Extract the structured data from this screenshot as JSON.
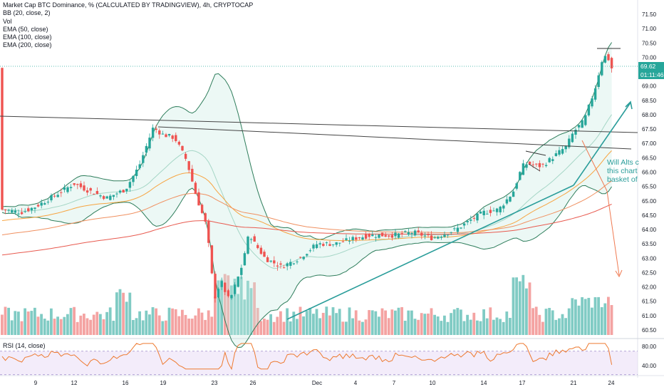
{
  "legend": {
    "title": "Market Cap BTC Dominance, % (CALCULATED BY TRADINGVIEW), 4h, CRYPTOCAP",
    "bb": "BB (20, close, 2)",
    "vol": "Vol",
    "ema50": "EMA (50, close)",
    "ema100": "EMA (100, close)",
    "ema200": "EMA (200, close)"
  },
  "rsi_label": "RSI (14, close)",
  "note": {
    "line1": "Will Alts c",
    "line2": "this chart",
    "line3": "basket of"
  },
  "badges": {
    "price": "69.62",
    "countdown": "01:11:46"
  },
  "colors": {
    "up": "#26a69a",
    "down": "#ef5350",
    "up_vol": "#80cbc4",
    "down_vol": "#f4a3a2",
    "bb_band": "#2e7d5b",
    "ema50": "#f7a440",
    "ema100": "#f09060",
    "ema200": "#e85a4f",
    "trend": "#2a9d9a",
    "arrow_down": "#f07a52",
    "rsi_line": "#ee7a30",
    "rsi_band": "#e9dcf6"
  },
  "chart_data": {
    "type": "candlestick",
    "symbol": "Market Cap BTC Dominance, %",
    "interval": "4h",
    "y_ticks": [
      "71.50",
      "71.00",
      "70.50",
      "70.00",
      "69.50",
      "69.00",
      "68.50",
      "68.00",
      "67.50",
      "67.00",
      "66.50",
      "66.00",
      "65.50",
      "65.00",
      "64.50",
      "64.00",
      "63.50",
      "63.00",
      "62.50",
      "62.00",
      "61.50",
      "61.00",
      "60.50"
    ],
    "ylim": [
      60.3,
      71.65
    ],
    "x_ticks": [
      "9",
      "12",
      "16",
      "19",
      "23",
      "26",
      "Dec",
      "4",
      "7",
      "10",
      "14",
      "17",
      "21",
      "24"
    ],
    "rsi_ticks": [
      "80.00",
      "40.00"
    ],
    "rsi_bands": [
      30,
      70
    ],
    "key_closes": [
      {
        "label": "9",
        "value": 64.8
      },
      {
        "label": "12",
        "value": 65.6
      },
      {
        "label": "16",
        "value": 65.4
      },
      {
        "label": "19",
        "value": 67.3
      },
      {
        "label": "23",
        "value": 61.6
      },
      {
        "label": "26",
        "value": 63.6
      },
      {
        "label": "Dec",
        "value": 63.5
      },
      {
        "label": "4",
        "value": 63.7
      },
      {
        "label": "7",
        "value": 63.8
      },
      {
        "label": "10",
        "value": 63.7
      },
      {
        "label": "14",
        "value": 64.6
      },
      {
        "label": "17",
        "value": 66.2
      },
      {
        "label": "21",
        "value": 67.4
      },
      {
        "label": "24",
        "value": 69.62
      }
    ],
    "last_price": 69.62,
    "series": [
      {
        "name": "BB (20, close, 2)"
      },
      {
        "name": "EMA (50, close)"
      },
      {
        "name": "EMA (100, close)"
      },
      {
        "name": "EMA (200, close)"
      },
      {
        "name": "Vol"
      },
      {
        "name": "RSI (14, close)"
      }
    ]
  }
}
